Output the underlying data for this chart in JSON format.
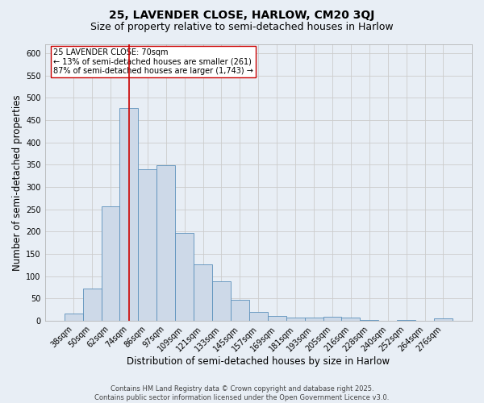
{
  "title": "25, LAVENDER CLOSE, HARLOW, CM20 3QJ",
  "subtitle": "Size of property relative to semi-detached houses in Harlow",
  "xlabel": "Distribution of semi-detached houses by size in Harlow",
  "ylabel": "Number of semi-detached properties",
  "categories": [
    "38sqm",
    "50sqm",
    "62sqm",
    "74sqm",
    "86sqm",
    "97sqm",
    "109sqm",
    "121sqm",
    "133sqm",
    "145sqm",
    "157sqm",
    "169sqm",
    "181sqm",
    "193sqm",
    "205sqm",
    "216sqm",
    "228sqm",
    "240sqm",
    "252sqm",
    "264sqm",
    "276sqm"
  ],
  "values": [
    17,
    72,
    257,
    478,
    340,
    348,
    197,
    127,
    88,
    47,
    19,
    10,
    8,
    8,
    9,
    8,
    2,
    0,
    2,
    0,
    5
  ],
  "bar_facecolor": "#cdd9e8",
  "bar_edgecolor": "#5b90bb",
  "redline_index": 3.0,
  "redline_color": "#cc0000",
  "annotation_text": "25 LAVENDER CLOSE: 70sqm\n← 13% of semi-detached houses are smaller (261)\n87% of semi-detached houses are larger (1,743) →",
  "annotation_box_edgecolor": "#cc0000",
  "annotation_box_facecolor": "#ffffff",
  "ylim": [
    0,
    620
  ],
  "yticks": [
    0,
    50,
    100,
    150,
    200,
    250,
    300,
    350,
    400,
    450,
    500,
    550,
    600
  ],
  "grid_color": "#cccccc",
  "bg_color": "#e8eef5",
  "footer_text": "Contains HM Land Registry data © Crown copyright and database right 2025.\nContains public sector information licensed under the Open Government Licence v3.0.",
  "title_fontsize": 10,
  "subtitle_fontsize": 9,
  "axis_label_fontsize": 8.5,
  "tick_fontsize": 7,
  "annotation_fontsize": 7,
  "footer_fontsize": 6
}
